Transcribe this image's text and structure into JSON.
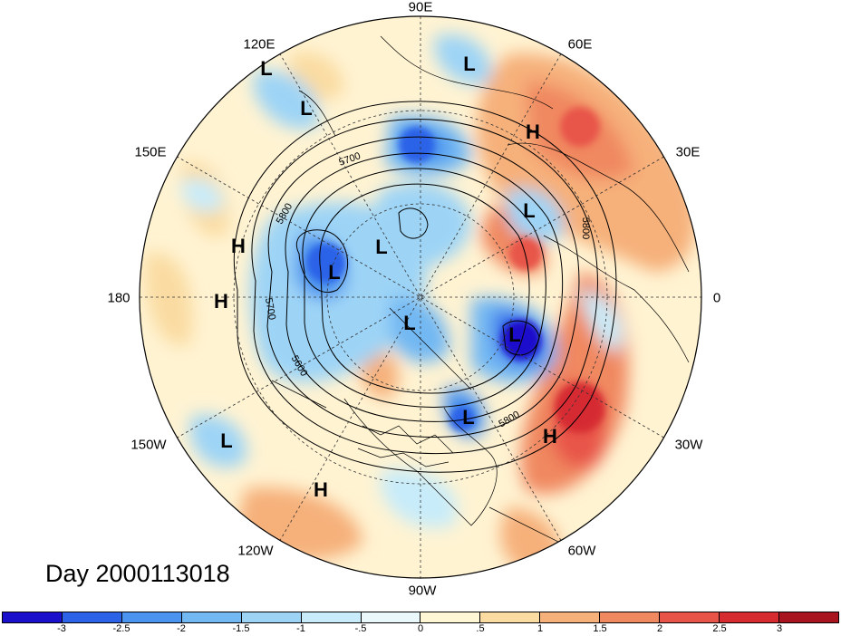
{
  "title": "Day 2000113018",
  "longitude_labels": [
    {
      "id": "lon-90e",
      "text": "90E"
    },
    {
      "id": "lon-60e",
      "text": "60E"
    },
    {
      "id": "lon-120e",
      "text": "120E"
    },
    {
      "id": "lon-150e",
      "text": "150E"
    },
    {
      "id": "lon-30e",
      "text": "30E"
    },
    {
      "id": "lon-180",
      "text": "180"
    },
    {
      "id": "lon-0",
      "text": "0"
    },
    {
      "id": "lon-150w",
      "text": "150W"
    },
    {
      "id": "lon-30w",
      "text": "30W"
    },
    {
      "id": "lon-120w",
      "text": "120W"
    },
    {
      "id": "lon-60w",
      "text": "60W"
    },
    {
      "id": "lon-90w",
      "text": "90W"
    }
  ],
  "pressure_centers": [
    {
      "type": "L"
    },
    {
      "type": "L"
    },
    {
      "type": "L"
    },
    {
      "type": "H"
    },
    {
      "type": "H"
    },
    {
      "type": "L"
    },
    {
      "type": "L"
    },
    {
      "type": "L"
    },
    {
      "type": "H"
    },
    {
      "type": "L"
    },
    {
      "type": "L"
    },
    {
      "type": "L"
    },
    {
      "type": "H"
    },
    {
      "type": "L"
    },
    {
      "type": "H"
    }
  ],
  "contour_labels": [
    "5700",
    "5800",
    "5800",
    "5700",
    "5600",
    "5800"
  ],
  "colorbar": {
    "ticks": [
      "-3",
      "-2.5",
      "-2",
      "-1.5",
      "-1",
      "-.5",
      "0",
      ".5",
      "1",
      "1.5",
      "2",
      "2.5",
      "3"
    ],
    "colors": [
      "#1a10cc",
      "#2b62e8",
      "#4a93ef",
      "#72b8f3",
      "#9dd4f6",
      "#c8ecfa",
      "#eaf8fc",
      "#fff6d6",
      "#fadca2",
      "#f6b07a",
      "#f08860",
      "#e85448",
      "#d62c30",
      "#a8151f"
    ]
  }
}
